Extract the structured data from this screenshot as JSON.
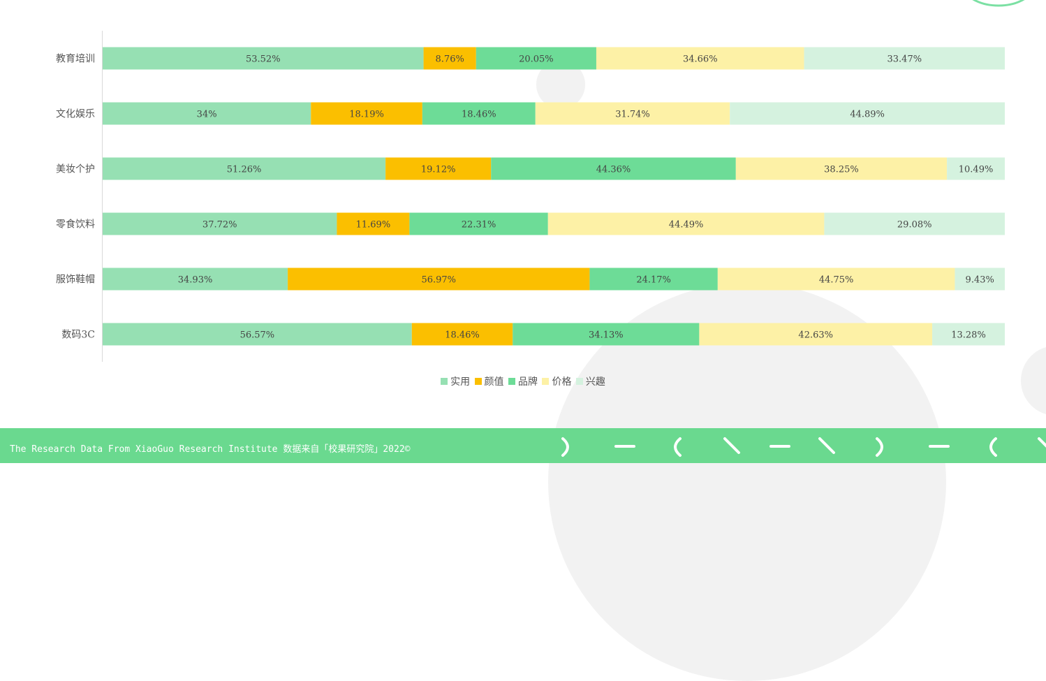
{
  "chart_data": {
    "type": "bar",
    "orientation": "horizontal",
    "stacked": true,
    "normalized": true,
    "categories": [
      "教育培训",
      "文化娱乐",
      "美妆个护",
      "零食饮料",
      "服饰鞋帽",
      "数码3C"
    ],
    "series": [
      {
        "name": "实用",
        "color": "#96e0b3",
        "values": [
          53.52,
          34,
          51.26,
          37.72,
          34.93,
          56.57
        ],
        "labels": [
          "53.52%",
          "34%",
          "51.26%",
          "37.72%",
          "34.93%",
          "56.57%"
        ]
      },
      {
        "name": "颜值",
        "color": "#fbbf00",
        "values": [
          8.76,
          18.19,
          19.12,
          11.69,
          56.97,
          18.46
        ],
        "labels": [
          "8.76%",
          "18.19%",
          "19.12%",
          "11.69%",
          "56.97%",
          "18.46%"
        ]
      },
      {
        "name": "品牌",
        "color": "#6ddc97",
        "values": [
          20.05,
          18.46,
          44.36,
          22.31,
          24.17,
          34.13
        ],
        "labels": [
          "20.05%",
          "18.46%",
          "44.36%",
          "22.31%",
          "24.17%",
          "34.13%"
        ]
      },
      {
        "name": "价格",
        "color": "#fdf1a6",
        "values": [
          34.66,
          31.74,
          38.25,
          44.49,
          44.75,
          42.63
        ],
        "labels": [
          "34.66%",
          "31.74%",
          "38.25%",
          "44.49%",
          "44.75%",
          "42.63%"
        ]
      },
      {
        "name": "兴趣",
        "color": "#d5f2df",
        "values": [
          33.47,
          44.89,
          10.49,
          29.08,
          9.43,
          13.28
        ],
        "labels": [
          "33.47%",
          "44.89%",
          "10.49%",
          "29.08%",
          "9.43%",
          "13.28%"
        ]
      }
    ],
    "legend_position": "bottom",
    "grid": false
  },
  "footer": {
    "text": "The Research Data  From XiaoGuo Research Institute 数据来自「校果研究院」2022©"
  },
  "colors": {
    "footer_bg": "#6ad98f",
    "axis": "#d9d9d9"
  }
}
